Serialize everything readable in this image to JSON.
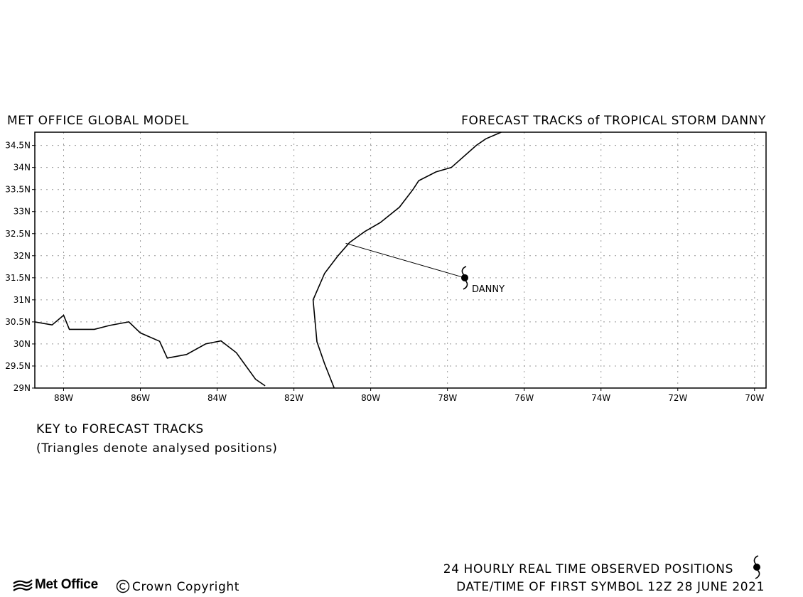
{
  "header": {
    "left_title": "MET OFFICE GLOBAL MODEL",
    "right_title": "FORECAST TRACKS of TROPICAL STORM DANNY"
  },
  "map": {
    "lon_range": [
      -88.75,
      -69.7
    ],
    "lat_range": [
      29,
      34.8
    ],
    "grid": true,
    "lat_ticks": [
      {
        "value": 29,
        "label": "29N"
      },
      {
        "value": 29.5,
        "label": "29.5N"
      },
      {
        "value": 30,
        "label": "30N"
      },
      {
        "value": 30.5,
        "label": "30.5N"
      },
      {
        "value": 31,
        "label": "31N"
      },
      {
        "value": 31.5,
        "label": "31.5N"
      },
      {
        "value": 32,
        "label": "32N"
      },
      {
        "value": 32.5,
        "label": "32.5N"
      },
      {
        "value": 33,
        "label": "33N"
      },
      {
        "value": 33.5,
        "label": "33.5N"
      },
      {
        "value": 34,
        "label": "34N"
      },
      {
        "value": 34.5,
        "label": "34.5N"
      }
    ],
    "lon_ticks": [
      {
        "value": -88,
        "label": "88W"
      },
      {
        "value": -86,
        "label": "86W"
      },
      {
        "value": -84,
        "label": "84W"
      },
      {
        "value": -82,
        "label": "82W"
      },
      {
        "value": -80,
        "label": "80W"
      },
      {
        "value": -78,
        "label": "78W"
      },
      {
        "value": -76,
        "label": "76W"
      },
      {
        "value": -74,
        "label": "74W"
      },
      {
        "value": -72,
        "label": "72W"
      },
      {
        "value": -70,
        "label": "70W"
      }
    ],
    "coastline_gulf": [
      [
        -88.75,
        30.5
      ],
      [
        -88.3,
        30.43
      ],
      [
        -88.0,
        30.65
      ],
      [
        -87.85,
        30.33
      ],
      [
        -87.2,
        30.33
      ],
      [
        -86.8,
        30.42
      ],
      [
        -86.3,
        30.5
      ],
      [
        -86.0,
        30.25
      ],
      [
        -85.5,
        30.06
      ],
      [
        -85.3,
        29.68
      ],
      [
        -84.8,
        29.76
      ],
      [
        -84.3,
        30.0
      ],
      [
        -83.9,
        30.07
      ],
      [
        -83.5,
        29.8
      ],
      [
        -83.0,
        29.2
      ],
      [
        -82.75,
        29.05
      ]
    ],
    "coastline_atlantic": [
      [
        -80.95,
        29.0
      ],
      [
        -81.2,
        29.55
      ],
      [
        -81.4,
        30.05
      ],
      [
        -81.5,
        31.0
      ],
      [
        -81.2,
        31.6
      ],
      [
        -80.85,
        32.0
      ],
      [
        -80.55,
        32.3
      ],
      [
        -80.15,
        32.55
      ],
      [
        -79.75,
        32.75
      ],
      [
        -79.25,
        33.1
      ],
      [
        -78.9,
        33.5
      ],
      [
        -78.75,
        33.7
      ],
      [
        -78.3,
        33.9
      ],
      [
        -77.9,
        34.0
      ],
      [
        -77.25,
        34.5
      ],
      [
        -77.0,
        34.65
      ],
      [
        -76.6,
        34.8
      ]
    ],
    "storm": {
      "name": "DANNY",
      "position": [
        -77.55,
        31.5
      ],
      "track_to": [
        -80.65,
        32.28
      ]
    }
  },
  "key": {
    "title": "KEY to FORECAST TRACKS",
    "subtitle": "(Triangles denote analysed positions)"
  },
  "footer": {
    "logo_text": "Met Office",
    "copyright": "Crown Copyright",
    "observed_positions": "24 HOURLY REAL TIME OBSERVED POSITIONS",
    "first_symbol": "DATE/TIME OF FIRST SYMBOL 12Z 28 JUNE 2021"
  },
  "icons": {
    "storm_symbol": "tropical-storm-icon",
    "logo_mark": "met-office-waves-icon",
    "copyright_mark": "copyright-icon"
  }
}
